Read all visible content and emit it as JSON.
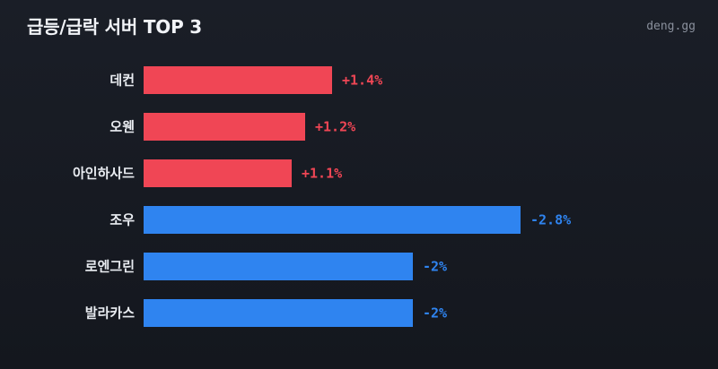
{
  "header": {
    "title": "급등/급락 서버 TOP 3",
    "brand": "deng.gg"
  },
  "colors": {
    "positive": "#f04655",
    "negative": "#2f84f0",
    "background": "#161a21"
  },
  "chart_data": {
    "type": "bar",
    "orientation": "horizontal",
    "title": "급등/급락 서버 TOP 3",
    "categories": [
      "데컨",
      "오웬",
      "아인하사드",
      "조우",
      "로엔그린",
      "발라카스"
    ],
    "values": [
      1.4,
      1.2,
      1.1,
      -2.8,
      -2,
      -2
    ],
    "value_labels": [
      "+1.4%",
      "+1.2%",
      "+1.1%",
      "-2.8%",
      "-2%",
      "-2%"
    ],
    "unit": "%",
    "grid": false,
    "legend": "none"
  }
}
